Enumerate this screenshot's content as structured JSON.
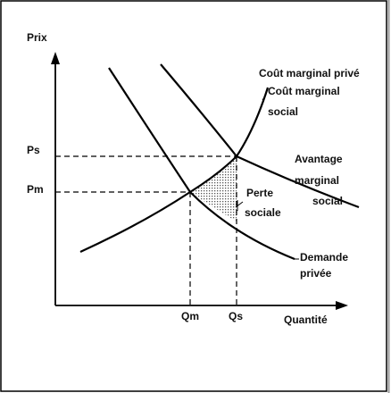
{
  "diagram": {
    "y_axis_label": "Prix",
    "x_axis_label": "Quantité",
    "price_labels": [
      "Ps",
      "Pm"
    ],
    "quantity_labels": [
      "Qm",
      "Qs"
    ],
    "curves": {
      "private_marginal_cost": [
        "Coût marginal privé"
      ],
      "social_marginal_cost": [
        "Coût marginal",
        "social"
      ],
      "social_marginal_benefit": [
        "Avantage",
        "marginal",
        "social"
      ],
      "private_demand": [
        "Demande",
        "privée"
      ]
    },
    "deadweight_loss": [
      "Perte",
      "sociale"
    ]
  }
}
